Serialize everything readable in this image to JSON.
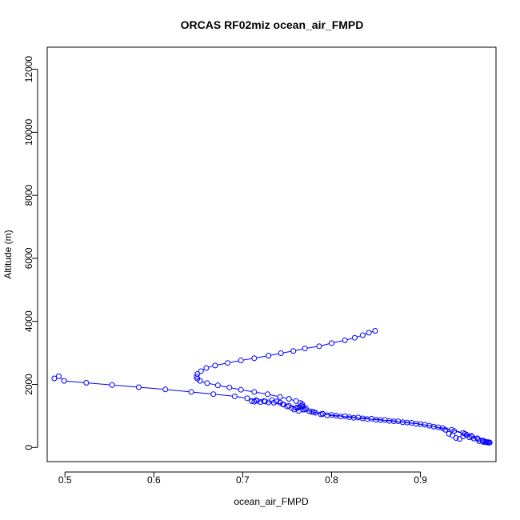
{
  "chart_data": {
    "type": "scatter",
    "title": "ORCAS RF02miz ocean_air_FMPD",
    "xlabel": "ocean_air_FMPD",
    "ylabel": "Altitude (m)",
    "xlim": [
      0.48,
      0.985
    ],
    "ylim": [
      -450,
      12700
    ],
    "xticks": [
      {
        "value": 0.5,
        "label": "0.5"
      },
      {
        "value": 0.6,
        "label": "0.6"
      },
      {
        "value": 0.7,
        "label": "0.7"
      },
      {
        "value": 0.8,
        "label": "0.8"
      },
      {
        "value": 0.9,
        "label": "0.9"
      }
    ],
    "yticks": [
      {
        "value": 0,
        "label": "0"
      },
      {
        "value": 2000,
        "label": "2000"
      },
      {
        "value": 4000,
        "label": "4000"
      },
      {
        "value": 6000,
        "label": "6000"
      },
      {
        "value": 8000,
        "label": "8000"
      },
      {
        "value": 10000,
        "label": "10000"
      },
      {
        "value": 12000,
        "label": "12000"
      }
    ],
    "grid": false,
    "color": "#0000ff",
    "series": [
      {
        "points": [
          [
            0.849,
            3700
          ],
          [
            0.842,
            3640
          ],
          [
            0.835,
            3560
          ],
          [
            0.826,
            3480
          ],
          [
            0.815,
            3400
          ],
          [
            0.8,
            3310
          ],
          [
            0.786,
            3210
          ],
          [
            0.77,
            3140
          ],
          [
            0.757,
            3060
          ],
          [
            0.743,
            2990
          ],
          [
            0.729,
            2910
          ],
          [
            0.713,
            2830
          ],
          [
            0.698,
            2760
          ],
          [
            0.683,
            2680
          ],
          [
            0.669,
            2600
          ],
          [
            0.659,
            2520
          ],
          [
            0.653,
            2420
          ],
          [
            0.649,
            2330
          ],
          [
            0.648,
            2240
          ],
          [
            0.649,
            2180
          ],
          [
            0.652,
            2110
          ],
          [
            0.66,
            2040
          ],
          [
            0.672,
            1970
          ],
          [
            0.685,
            1900
          ],
          [
            0.698,
            1830
          ],
          [
            0.713,
            1760
          ],
          [
            0.728,
            1690
          ],
          [
            0.742,
            1600
          ],
          [
            0.752,
            1540
          ],
          [
            0.76,
            1470
          ],
          [
            0.765,
            1410
          ],
          [
            0.767,
            1370
          ],
          [
            0.766,
            1320
          ],
          [
            0.764,
            1280
          ],
          [
            0.762,
            1250
          ],
          [
            0.77,
            1200
          ],
          [
            0.78,
            1120
          ],
          [
            0.79,
            1070
          ],
          [
            0.8,
            1030
          ],
          [
            0.815,
            990
          ],
          [
            0.83,
            950
          ],
          [
            0.845,
            910
          ],
          [
            0.86,
            870
          ],
          [
            0.875,
            830
          ],
          [
            0.89,
            780
          ],
          [
            0.905,
            720
          ],
          [
            0.92,
            640
          ],
          [
            0.935,
            560
          ],
          [
            0.948,
            460
          ],
          [
            0.957,
            370
          ],
          [
            0.964,
            290
          ],
          [
            0.97,
            220
          ],
          [
            0.973,
            185
          ],
          [
            0.976,
            170
          ]
        ]
      },
      {
        "points": [
          [
            0.488,
            2190
          ],
          [
            0.493,
            2260
          ],
          [
            0.499,
            2110
          ],
          [
            0.524,
            2050
          ],
          [
            0.553,
            1980
          ],
          [
            0.583,
            1910
          ],
          [
            0.613,
            1840
          ],
          [
            0.642,
            1760
          ],
          [
            0.667,
            1690
          ],
          [
            0.691,
            1620
          ],
          [
            0.705,
            1560
          ],
          [
            0.715,
            1500
          ],
          [
            0.725,
            1460
          ],
          [
            0.735,
            1420
          ],
          [
            0.745,
            1370
          ],
          [
            0.752,
            1320
          ],
          [
            0.76,
            1260
          ],
          [
            0.768,
            1200
          ],
          [
            0.778,
            1130
          ],
          [
            0.79,
            1060
          ],
          [
            0.805,
            1010
          ],
          [
            0.82,
            960
          ],
          [
            0.835,
            920
          ],
          [
            0.85,
            880
          ],
          [
            0.865,
            840
          ],
          [
            0.88,
            800
          ],
          [
            0.895,
            750
          ],
          [
            0.91,
            690
          ],
          [
            0.925,
            610
          ],
          [
            0.938,
            520
          ],
          [
            0.95,
            430
          ],
          [
            0.958,
            340
          ],
          [
            0.965,
            260
          ],
          [
            0.97,
            200
          ],
          [
            0.974,
            165
          ],
          [
            0.977,
            150
          ]
        ]
      },
      {
        "points": [
          [
            0.71,
            1470
          ],
          [
            0.713,
            1450
          ],
          [
            0.716,
            1480
          ],
          [
            0.72,
            1440
          ],
          [
            0.724,
            1470
          ],
          [
            0.729,
            1430
          ],
          [
            0.733,
            1500
          ],
          [
            0.738,
            1460
          ],
          [
            0.742,
            1420
          ],
          [
            0.746,
            1360
          ],
          [
            0.75,
            1300
          ],
          [
            0.755,
            1250
          ],
          [
            0.758,
            1200
          ],
          [
            0.763,
            1160
          ],
          [
            0.768,
            1300
          ],
          [
            0.771,
            1240
          ],
          [
            0.775,
            1150
          ],
          [
            0.782,
            1100
          ],
          [
            0.788,
            1050
          ],
          [
            0.795,
            1020
          ],
          [
            0.81,
            980
          ],
          [
            0.825,
            940
          ],
          [
            0.84,
            900
          ],
          [
            0.855,
            870
          ],
          [
            0.87,
            830
          ],
          [
            0.885,
            790
          ],
          [
            0.9,
            740
          ],
          [
            0.915,
            660
          ],
          [
            0.928,
            560
          ],
          [
            0.932,
            430
          ],
          [
            0.936,
            380
          ],
          [
            0.94,
            300
          ],
          [
            0.944,
            270
          ],
          [
            0.948,
            350
          ],
          [
            0.952,
            400
          ],
          [
            0.955,
            320
          ],
          [
            0.96,
            280
          ],
          [
            0.966,
            200
          ],
          [
            0.971,
            170
          ],
          [
            0.975,
            160
          ],
          [
            0.978,
            155
          ]
        ]
      }
    ]
  }
}
